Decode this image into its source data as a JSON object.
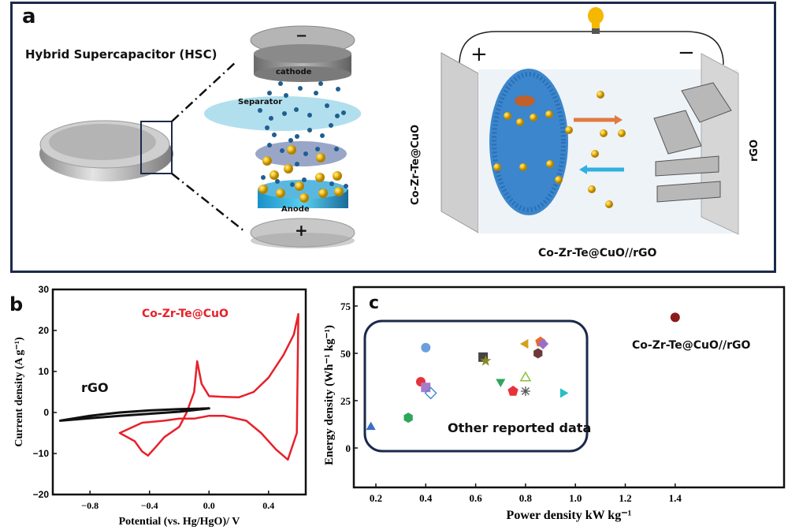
{
  "panel_a": {
    "label": "a",
    "hsc_title": "Hybrid Supercapacitor (HSC)",
    "layers": {
      "top_sign": "−",
      "cathode": "cathode",
      "separator": "Separator",
      "anode": "Anode",
      "bottom_sign": "+"
    },
    "cell": {
      "positive_sign": "+",
      "negative_sign": "−",
      "left_electrode": "Co-Zr-Te@CuO",
      "right_electrode": "rGO",
      "device_label": "Co-Zr-Te@CuO//rGO"
    }
  },
  "chart_data": [
    {
      "panel": "b",
      "type": "line",
      "title": "",
      "xlabel": "Potential (vs. Hg/HgO)/ V",
      "ylabel": "Current density (A g⁻¹)",
      "xlim": [
        -1.05,
        0.65
      ],
      "ylim": [
        -20,
        30
      ],
      "xticks": [
        -0.8,
        -0.4,
        0.0,
        0.4
      ],
      "xtick_labels": [
        "−0.8",
        "−0.4",
        "0.0",
        "0.4"
      ],
      "yticks": [
        -20,
        -10,
        0,
        10,
        20,
        30
      ],
      "ytick_labels": [
        "−20",
        "−10",
        "0",
        "10",
        "20",
        "30"
      ],
      "grid": false,
      "annotations": [
        "Co-Zr-Te@CuO",
        "rGO"
      ],
      "series": [
        {
          "name": "Co-Zr-Te@CuO",
          "color": "#e8202a",
          "x": [
            -0.6,
            -0.5,
            -0.45,
            -0.41,
            -0.36,
            -0.3,
            -0.2,
            -0.15,
            -0.1,
            -0.08,
            -0.05,
            0.0,
            0.1,
            0.2,
            0.3,
            0.4,
            0.5,
            0.57,
            0.6,
            0.6,
            0.59,
            0.53,
            0.45,
            0.35,
            0.25,
            0.1,
            0.0,
            -0.1,
            -0.2,
            -0.3,
            -0.45,
            -0.6
          ],
          "y": [
            -5,
            -7,
            -9.5,
            -10.5,
            -8.5,
            -6,
            -3.5,
            0,
            5,
            12.5,
            7,
            4,
            3.8,
            3.7,
            5,
            8.5,
            14,
            19,
            24,
            24,
            -5,
            -11.5,
            -9,
            -5,
            -2,
            -0.8,
            -0.8,
            -1.5,
            -1.5,
            -2,
            -2.5,
            -5
          ]
        },
        {
          "name": "rGO",
          "color": "#111111",
          "x": [
            -1.0,
            -0.8,
            -0.6,
            -0.4,
            -0.2,
            0.0,
            0.0,
            -0.2,
            -0.4,
            -0.6,
            -0.8,
            -1.0
          ],
          "y": [
            -2,
            -0.8,
            0,
            0.5,
            0.8,
            1,
            1,
            0.2,
            -0.3,
            -0.8,
            -1.4,
            -2
          ]
        }
      ]
    },
    {
      "panel": "c",
      "type": "scatter",
      "title": "",
      "xlabel": "Power density kW kg⁻¹",
      "ylabel": "Energy density (Wh⁻¹ kg⁻¹)",
      "xlim": [
        0.1,
        1.48
      ],
      "ylim": [
        -20,
        78
      ],
      "xticks": [
        0.2,
        0.4,
        0.6,
        0.8,
        1.0,
        1.2,
        1.4
      ],
      "xtick_labels": [
        "0.2",
        "0.4",
        "0.6",
        "0.8",
        "1.0",
        "1.2",
        "1.4"
      ],
      "yticks": [
        0,
        25,
        50,
        75
      ],
      "ytick_labels": [
        "0",
        "25",
        "50",
        "75"
      ],
      "grid": false,
      "annotations": [
        "Other reported data",
        "Co-Zr-Te@CuO//rGO"
      ],
      "points": [
        {
          "name": "this-work",
          "x": 1.4,
          "y": 69,
          "marker": "sphere",
          "color": "#8b1a1a"
        },
        {
          "name": "ref-1",
          "x": 0.18,
          "y": 11,
          "marker": "triangle-up",
          "color": "#3a6fc4"
        },
        {
          "name": "ref-2",
          "x": 0.33,
          "y": 16,
          "marker": "hexagon-half",
          "color": "#2ea65a"
        },
        {
          "name": "ref-3",
          "x": 0.38,
          "y": 35,
          "marker": "circle",
          "color": "#e8323a"
        },
        {
          "name": "ref-4",
          "x": 0.4,
          "y": 32,
          "marker": "square",
          "color": "#a77cc9"
        },
        {
          "name": "ref-5",
          "x": 0.42,
          "y": 29,
          "marker": "diamond-hatched",
          "color": "#4a8ad8"
        },
        {
          "name": "ref-6",
          "x": 0.4,
          "y": 53,
          "marker": "sphere",
          "color": "#6a9fdc"
        },
        {
          "name": "ref-7",
          "x": 0.63,
          "y": 48,
          "marker": "square",
          "color": "#444444"
        },
        {
          "name": "ref-8",
          "x": 0.64,
          "y": 46,
          "marker": "star",
          "color": "#8a8a20"
        },
        {
          "name": "ref-9",
          "x": 0.7,
          "y": 35,
          "marker": "triangle-down",
          "color": "#2ea65a"
        },
        {
          "name": "ref-10",
          "x": 0.75,
          "y": 30,
          "marker": "pentagon-half",
          "color": "#e8323a"
        },
        {
          "name": "ref-11",
          "x": 0.8,
          "y": 37,
          "marker": "triangle-up-open",
          "color": "#8cbf3a"
        },
        {
          "name": "ref-12",
          "x": 0.8,
          "y": 30,
          "marker": "asterisk",
          "color": "#555555"
        },
        {
          "name": "ref-13",
          "x": 0.8,
          "y": 55,
          "marker": "triangle-left",
          "color": "#d4a020"
        },
        {
          "name": "ref-14",
          "x": 0.86,
          "y": 56,
          "marker": "pentagon",
          "color": "#f06a1e"
        },
        {
          "name": "ref-15",
          "x": 0.87,
          "y": 55,
          "marker": "diamond",
          "color": "#9a6ec8"
        },
        {
          "name": "ref-16",
          "x": 0.85,
          "y": 50,
          "marker": "hexagon",
          "color": "#6b3b3b"
        },
        {
          "name": "ref-17",
          "x": 0.95,
          "y": 29,
          "marker": "triangle-right",
          "color": "#27bfc4"
        }
      ]
    }
  ],
  "panel_b_label": "b",
  "panel_c_label": "c",
  "colors": {
    "frame": "#1b2a4a",
    "red_curve": "#e8202a",
    "bulb": "#f5b800"
  }
}
